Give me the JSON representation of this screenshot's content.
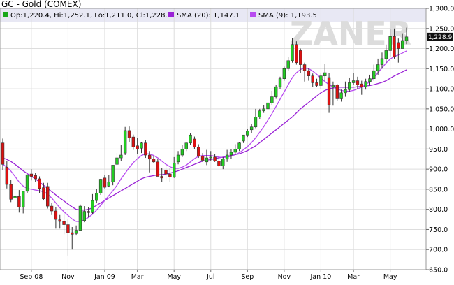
{
  "chart_data": {
    "type": "candlestick",
    "title": "GC - Gold (COMEX)",
    "watermark": "ZANER",
    "legend": [
      {
        "label": "Op:1,220.4, Hi:1,252.1, Lo:1,211.0, Cl:1,228.9",
        "color": "#1aa81a",
        "icon": "square"
      },
      {
        "label": "SMA (20): 1,147.1",
        "color": "#9a22d6",
        "icon": "square"
      },
      {
        "label": "SMA (9): 1,193.5",
        "color": "#b84cf0",
        "icon": "square"
      }
    ],
    "last_price_label": "1,228.9",
    "ylim": [
      650,
      1300
    ],
    "y_ticks": [
      650,
      700,
      750,
      800,
      850,
      900,
      950,
      1000,
      1050,
      1100,
      1150,
      1200,
      1250,
      1300
    ],
    "y_tick_labels": [
      "650.0",
      "700.0",
      "750.0",
      "800.0",
      "850.0",
      "900.0",
      "950.0",
      "1,000.0",
      "1,050.0",
      "1,100.0",
      "1,150.0",
      "1,200.0",
      "1,250.0",
      "1,300.0"
    ],
    "x_tick_labels": [
      "Sep 08",
      "Nov",
      "Jan 09",
      "Mar",
      "May",
      "Jul",
      "Sep",
      "Nov",
      "Jan 10",
      "Mar",
      "May"
    ],
    "x_tick_indices": [
      7,
      16,
      25,
      33,
      42,
      51,
      60,
      69,
      78,
      86,
      95
    ],
    "grid": true,
    "colors": {
      "up": "#22cc22",
      "down": "#dd1111",
      "sma20": "#9a22d6",
      "sma9": "#b84cf0",
      "grid": "#dddddd",
      "header_bg": "#e8e8f4"
    },
    "series": [
      {
        "name": "Open",
        "values": [
          965,
          905,
          862,
          828,
          832,
          806,
          845,
          888,
          884,
          876,
          854,
          857,
          808,
          796,
          774,
          770,
          762,
          742,
          740,
          748,
          772,
          795,
          792,
          822,
          840,
          878,
          858,
          868,
          912,
          928,
          940,
          996,
          980,
          958,
          952,
          965,
          935,
          925,
          918,
          882,
          898,
          888,
          880,
          918,
          935,
          950,
          965,
          975,
          955,
          932,
          918,
          928,
          930,
          920,
          908,
          925,
          935,
          942,
          950,
          970,
          985,
          998,
          1005,
          1030,
          1045,
          1050,
          1065,
          1080,
          1105,
          1125,
          1150,
          1170,
          1210,
          1195,
          1160,
          1145,
          1132,
          1115,
          1108,
          1132,
          1128,
          1105,
          1110,
          1075,
          1090,
          1098,
          1115,
          1120,
          1112,
          1105,
          1118,
          1125,
          1145,
          1160,
          1175,
          1195,
          1230,
          1215,
          1200,
          1220
        ]
      },
      {
        "name": "High",
        "values": [
          976,
          921,
          874,
          840,
          848,
          820,
          873,
          900,
          890,
          882,
          866,
          866,
          816,
          805,
          786,
          792,
          775,
          756,
          760,
          812,
          808,
          805,
          838,
          850,
          876,
          885,
          886,
          903,
          940,
          960,
          1005,
          1006,
          986,
          978,
          968,
          972,
          945,
          932,
          926,
          902,
          908,
          902,
          930,
          945,
          960,
          968,
          990,
          981,
          962,
          940,
          948,
          945,
          938,
          926,
          930,
          948,
          950,
          962,
          968,
          985,
          1000,
          1012,
          1050,
          1050,
          1060,
          1072,
          1095,
          1110,
          1130,
          1155,
          1180,
          1226,
          1218,
          1200,
          1165,
          1152,
          1138,
          1125,
          1140,
          1162,
          1140,
          1118,
          1112,
          1098,
          1118,
          1128,
          1140,
          1130,
          1120,
          1125,
          1135,
          1160,
          1175,
          1190,
          1210,
          1250,
          1250,
          1225,
          1238,
          1252
        ]
      },
      {
        "name": "Low",
        "values": [
          898,
          852,
          818,
          782,
          792,
          790,
          840,
          872,
          868,
          840,
          822,
          802,
          786,
          752,
          752,
          738,
          685,
          700,
          735,
          748,
          768,
          780,
          788,
          815,
          836,
          852,
          855,
          860,
          910,
          920,
          935,
          968,
          948,
          938,
          940,
          928,
          892,
          915,
          900,
          868,
          872,
          868,
          878,
          912,
          930,
          945,
          960,
          950,
          928,
          918,
          910,
          920,
          918,
          905,
          900,
          918,
          925,
          935,
          945,
          965,
          980,
          990,
          1002,
          1025,
          1040,
          1045,
          1060,
          1075,
          1100,
          1120,
          1145,
          1165,
          1160,
          1140,
          1118,
          1120,
          1105,
          1105,
          1100,
          1120,
          1040,
          1058,
          1070,
          1068,
          1080,
          1092,
          1110,
          1100,
          1085,
          1098,
          1108,
          1120,
          1135,
          1150,
          1165,
          1180,
          1175,
          1165,
          1200,
          1211
        ]
      },
      {
        "name": "Close",
        "values": [
          912,
          862,
          825,
          832,
          806,
          845,
          886,
          882,
          876,
          852,
          826,
          808,
          796,
          775,
          770,
          762,
          742,
          738,
          748,
          808,
          795,
          792,
          822,
          840,
          875,
          855,
          868,
          910,
          928,
          935,
          996,
          978,
          955,
          950,
          965,
          935,
          925,
          918,
          882,
          878,
          888,
          880,
          915,
          935,
          950,
          965,
          985,
          955,
          932,
          922,
          928,
          930,
          920,
          908,
          925,
          935,
          942,
          950,
          965,
          985,
          995,
          1005,
          1030,
          1045,
          1050,
          1065,
          1080,
          1105,
          1125,
          1150,
          1170,
          1210,
          1165,
          1160,
          1145,
          1132,
          1115,
          1108,
          1132,
          1140,
          1060,
          1108,
          1075,
          1090,
          1098,
          1115,
          1120,
          1110,
          1105,
          1118,
          1125,
          1145,
          1160,
          1175,
          1195,
          1230,
          1180,
          1200,
          1220,
          1229
        ]
      },
      {
        "name": "SMA (20)",
        "values": [
          928,
          924,
          919,
          912,
          904,
          896,
          889,
          882,
          876,
          868,
          860,
          852,
          844,
          836,
          828,
          821,
          813,
          806,
          800,
          798,
          798,
          800,
          804,
          810,
          816,
          822,
          828,
          834,
          840,
          846,
          852,
          858,
          864,
          870,
          876,
          880,
          882,
          884,
          886,
          886,
          888,
          890,
          893,
          896,
          900,
          904,
          908,
          912,
          916,
          920,
          922,
          924,
          926,
          928,
          930,
          932,
          934,
          936,
          938,
          942,
          946,
          952,
          958,
          966,
          974,
          982,
          990,
          998,
          1006,
          1014,
          1022,
          1030,
          1040,
          1050,
          1058,
          1066,
          1074,
          1082,
          1090,
          1096,
          1100,
          1102,
          1104,
          1104,
          1104,
          1104,
          1104,
          1105,
          1106,
          1107,
          1108,
          1110,
          1113,
          1116,
          1120,
          1126,
          1132,
          1137,
          1142,
          1147
        ]
      },
      {
        "name": "SMA (9)",
        "values": [
          912,
          905,
          895,
          882,
          868,
          858,
          852,
          850,
          848,
          846,
          844,
          838,
          828,
          816,
          804,
          794,
          785,
          776,
          770,
          770,
          774,
          780,
          788,
          798,
          810,
          822,
          834,
          846,
          860,
          876,
          890,
          904,
          916,
          926,
          934,
          938,
          938,
          934,
          928,
          920,
          912,
          906,
          902,
          902,
          905,
          910,
          918,
          926,
          932,
          934,
          934,
          934,
          932,
          930,
          929,
          930,
          932,
          936,
          941,
          948,
          956,
          966,
          978,
          992,
          1006,
          1022,
          1038,
          1056,
          1074,
          1092,
          1110,
          1128,
          1140,
          1148,
          1152,
          1150,
          1144,
          1136,
          1126,
          1118,
          1110,
          1105,
          1100,
          1096,
          1094,
          1094,
          1096,
          1100,
          1104,
          1110,
          1118,
          1128,
          1140,
          1152,
          1164,
          1174,
          1180,
          1184,
          1189,
          1194
        ]
      }
    ]
  }
}
